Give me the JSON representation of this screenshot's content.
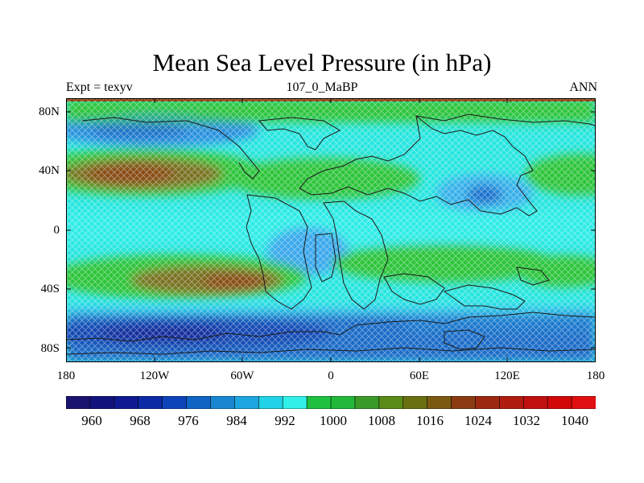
{
  "title": "Mean Sea Level Pressure (in hPa)",
  "left_label": "Expt = texyv",
  "center_label": "107_0_MaBP",
  "right_label": "ANN",
  "map": {
    "lat_ticks": [
      "80N",
      "40N",
      "0",
      "40S",
      "80S"
    ],
    "lon_ticks": [
      "180",
      "120W",
      "60W",
      "0",
      "60E",
      "120E",
      "180"
    ],
    "hatch_pattern": "cross-hatch"
  },
  "colorbar": {
    "labels": [
      "960",
      "968",
      "976",
      "984",
      "992",
      "1000",
      "1008",
      "1016",
      "1024",
      "1032",
      "1040"
    ],
    "colors": [
      "#1a1470",
      "#13137e",
      "#0f1a90",
      "#0b2aa4",
      "#0d45b8",
      "#0f64c4",
      "#1a86d2",
      "#1ea6e0",
      "#22d2e6",
      "#30f0e8",
      "#20c040",
      "#22b83a",
      "#3a9a28",
      "#5a8a18",
      "#6a7012",
      "#7a5a10",
      "#8a3c10",
      "#9c2810",
      "#b01c10",
      "#c01010",
      "#d00808",
      "#e01010"
    ]
  }
}
